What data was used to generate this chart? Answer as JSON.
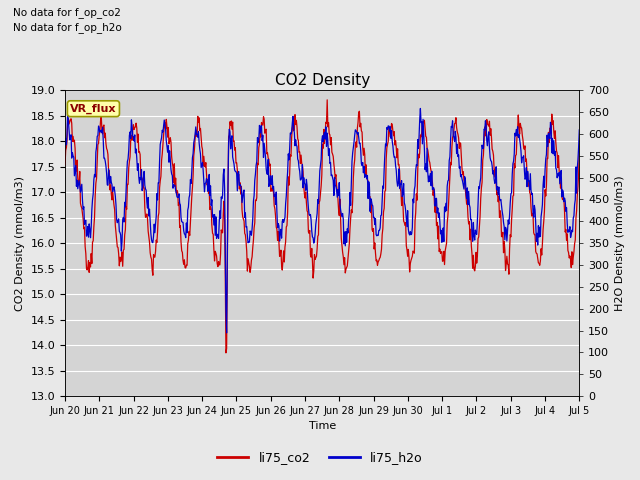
{
  "title": "CO2 Density",
  "xlabel": "Time",
  "ylabel_left": "CO2 Density (mmol/m3)",
  "ylabel_right": "H2O Density (mmol/m3)",
  "annotation1": "No data for f_op_co2",
  "annotation2": "No data for f_op_h2o",
  "vr_flux_label": "VR_flux",
  "ylim_left": [
    13.0,
    19.0
  ],
  "ylim_right": [
    0,
    700
  ],
  "yticks_left": [
    13.0,
    13.5,
    14.0,
    14.5,
    15.0,
    15.5,
    16.0,
    16.5,
    17.0,
    17.5,
    18.0,
    18.5,
    19.0
  ],
  "yticks_right": [
    0,
    50,
    100,
    150,
    200,
    250,
    300,
    350,
    400,
    450,
    500,
    550,
    600,
    650,
    700
  ],
  "xtick_labels": [
    "Jun 20",
    "Jun 21",
    "Jun 22",
    "Jun 23",
    "Jun 24",
    "Jun 25",
    "Jun 26",
    "Jun 27",
    "Jun 28",
    "Jun 29",
    "Jun 30",
    "Jul 1",
    "Jul 2",
    "Jul 3",
    "Jul 4",
    "Jul 5"
  ],
  "co2_color": "#cc0000",
  "h2o_color": "#0000cc",
  "background_color": "#e8e8e8",
  "plot_bg_color": "#d4d4d4",
  "grid_color": "#ffffff",
  "legend_co2": "li75_co2",
  "legend_h2o": "li75_h2o",
  "vr_flux_bg": "#ffffaa",
  "vr_flux_border": "#999900",
  "figsize": [
    6.4,
    4.8
  ],
  "dpi": 100
}
